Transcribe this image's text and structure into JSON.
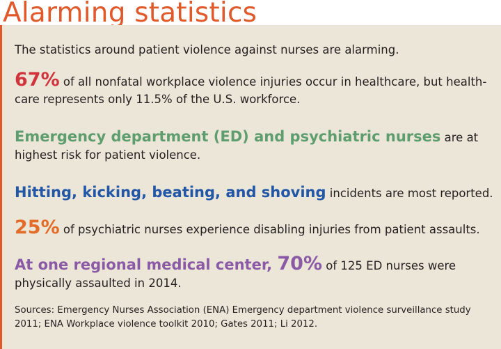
{
  "title": "Alarming statistics",
  "intro": "The statistics around patient violence against nurses are alarming.",
  "stats": [
    {
      "highlight": "67%",
      "text": " of all nonfatal workplace violence injuries occur in healthcare, but health-care represents only 11.5% of the U.S. workforce.",
      "color": "#d0343c"
    },
    {
      "highlight": "Emergency department (ED) and psychiatric nurses",
      "text": " are at highest risk for patient violence.",
      "color": "#5e9e6e"
    },
    {
      "highlight": "Hitting, kicking, beating, and shoving",
      "text": " incidents are most reported.",
      "color": "#2256a6"
    },
    {
      "highlight": "25%",
      "text": " of psychiatric nurses experience disabling injuries from patient assaults.",
      "color": "#e36c28"
    },
    {
      "highlight_a": "At one regional medical center, ",
      "highlight_b": "70%",
      "text": " of 125 ED nurses were physically assaulted in 2014.",
      "color": "#8a5aa6"
    }
  ],
  "sources": "Sources: Emergency Nurses Association (ENA) Emergency department violence surveillance study 2011; ENA Workplace violence toolkit 2010; Gates 2011; Li 2012.",
  "colors": {
    "accent": "#e0592a",
    "panel_bg": "#ece6d8"
  }
}
